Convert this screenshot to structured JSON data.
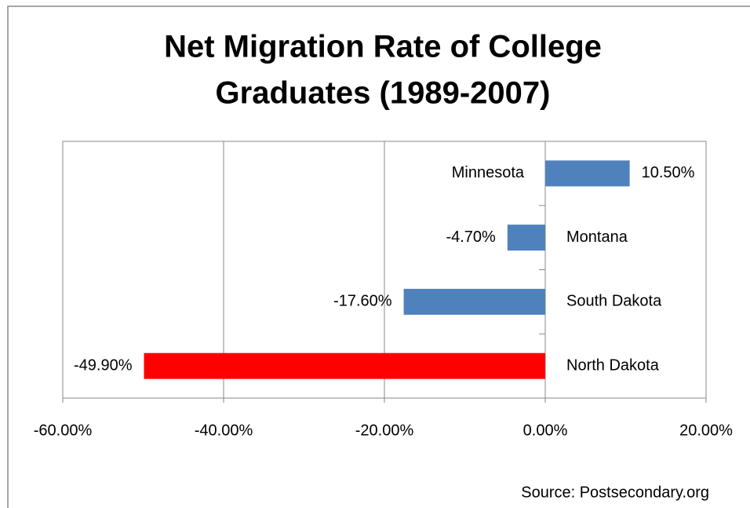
{
  "chart_data": {
    "type": "bar",
    "orientation": "horizontal",
    "title": [
      "Net Migration Rate of College",
      "Graduates (1989-2007)"
    ],
    "categories": [
      "Minnesota",
      "Montana",
      "South Dakota",
      "North Dakota"
    ],
    "values": [
      10.5,
      -4.7,
      -17.6,
      -49.9
    ],
    "value_labels": [
      "10.50%",
      "-4.70%",
      "-17.60%",
      "-49.90%"
    ],
    "colors": [
      "#4f81bd",
      "#4f81bd",
      "#4f81bd",
      "#ff0000"
    ],
    "xlim": [
      -60,
      20
    ],
    "xticks": [
      {
        "value": -60,
        "label": "-60.00%"
      },
      {
        "value": -40,
        "label": "-40.00%"
      },
      {
        "value": -20,
        "label": "-20.00%"
      },
      {
        "value": 0,
        "label": "0.00%"
      },
      {
        "value": 20,
        "label": "20.00%"
      }
    ],
    "grid": true,
    "source": "Source: Postsecondary.org"
  }
}
